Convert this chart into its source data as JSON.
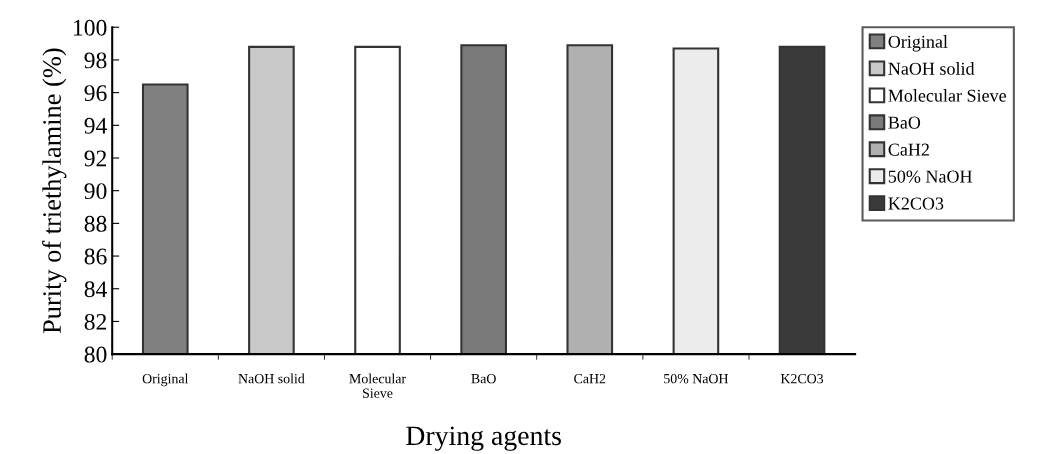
{
  "chart_data": {
    "type": "bar",
    "xlabel": "Drying agents",
    "ylabel": "Purity of triethylamine (%)",
    "categories": [
      "Original",
      "NaOH solid",
      "Molecular Sieve",
      "BaO",
      "CaH2",
      "50% NaOH",
      "K2CO3"
    ],
    "series": [
      {
        "name": "Original",
        "color": "#808080",
        "values": [
          96.5,
          null,
          null,
          null,
          null,
          null,
          null
        ]
      },
      {
        "name": "NaOH solid",
        "color": "#c8c8c8",
        "values": [
          null,
          98.8,
          null,
          null,
          null,
          null,
          null
        ]
      },
      {
        "name": "Molecular Sieve",
        "color": "#ffffff",
        "values": [
          null,
          null,
          98.8,
          null,
          null,
          null,
          null
        ]
      },
      {
        "name": "BaO",
        "color": "#7a7a7a",
        "values": [
          null,
          null,
          null,
          98.9,
          null,
          null,
          null
        ]
      },
      {
        "name": "CaH2",
        "color": "#b0b0b0",
        "values": [
          null,
          null,
          null,
          null,
          98.9,
          null,
          null
        ]
      },
      {
        "name": "50% NaOH",
        "color": "#ececec",
        "values": [
          null,
          null,
          null,
          null,
          null,
          98.7,
          null
        ]
      },
      {
        "name": "K2CO3",
        "color": "#3a3a3a",
        "values": [
          null,
          null,
          null,
          null,
          null,
          null,
          98.8
        ]
      }
    ],
    "ylim": [
      80,
      100
    ],
    "yticks": [
      80,
      82,
      84,
      86,
      88,
      90,
      92,
      94,
      96,
      98,
      100
    ],
    "grid": false,
    "legend": "right"
  }
}
